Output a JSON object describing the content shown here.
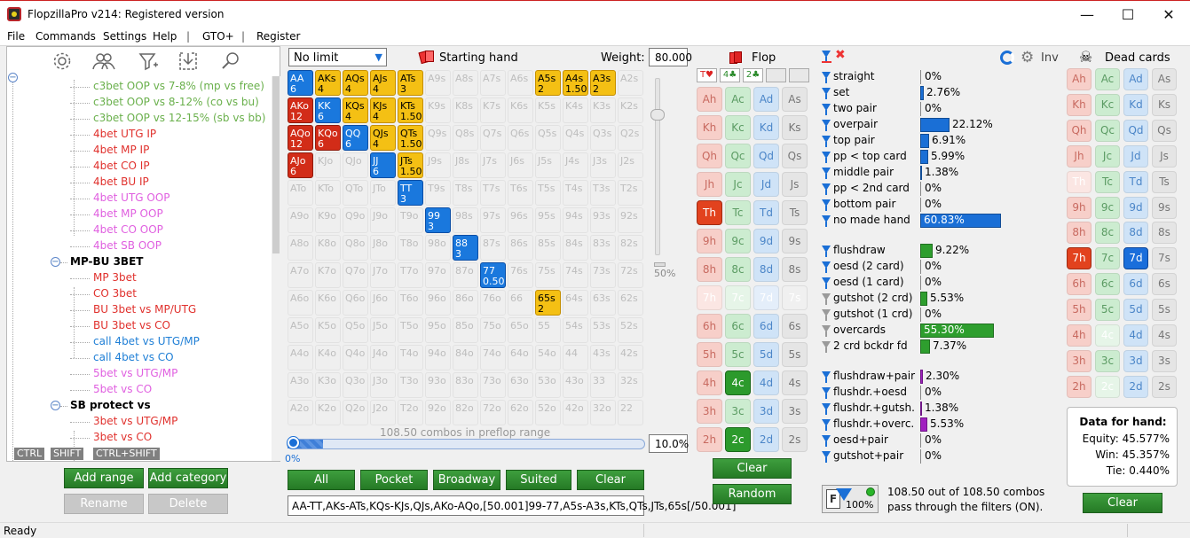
{
  "window": {
    "title": "FlopzillaPro v214: Registered version"
  },
  "menu": [
    "File",
    "Commands",
    "Settings",
    "Help",
    "|",
    "GTO+",
    "|",
    "Register"
  ],
  "tree": {
    "items": [
      {
        "text": "c3bet OOP vs 7-8% (mp vs free)",
        "color": "#6ab04c",
        "indent": 97
      },
      {
        "text": "c3bet OOP vs 8-12% (co vs bu)",
        "color": "#6ab04c",
        "indent": 97
      },
      {
        "text": "c3bet OOP vs 12-15% (sb vs bb)",
        "color": "#6ab04c",
        "indent": 97
      },
      {
        "text": "4bet UTG IP",
        "color": "#e0312d",
        "indent": 97
      },
      {
        "text": "4bet MP IP",
        "color": "#e0312d",
        "indent": 97
      },
      {
        "text": "4bet CO IP",
        "color": "#e0312d",
        "indent": 97
      },
      {
        "text": "4bet BU IP",
        "color": "#e0312d",
        "indent": 97
      },
      {
        "text": "4bet UTG OOP",
        "color": "#e060e0",
        "indent": 97
      },
      {
        "text": "4bet MP OOP",
        "color": "#e060e0",
        "indent": 97
      },
      {
        "text": "4bet CO OOP",
        "color": "#e060e0",
        "indent": 97
      },
      {
        "text": "4bet SB OOP",
        "color": "#e060e0",
        "indent": 97
      },
      {
        "text": "MP-BU 3BET",
        "color": "#000",
        "indent": 71,
        "bold": true,
        "folder": true
      },
      {
        "text": "MP 3bet",
        "color": "#e0312d",
        "indent": 97
      },
      {
        "text": "CO 3bet",
        "color": "#e0312d",
        "indent": 97
      },
      {
        "text": "BU 3bet vs MP/UTG",
        "color": "#e0312d",
        "indent": 97
      },
      {
        "text": "BU 3bet vs CO",
        "color": "#e0312d",
        "indent": 97
      },
      {
        "text": "call 4bet vs UTG/MP",
        "color": "#1f7fd6",
        "indent": 97
      },
      {
        "text": "call 4bet vs CO",
        "color": "#1f7fd6",
        "indent": 97
      },
      {
        "text": "5bet vs UTG/MP",
        "color": "#e060e0",
        "indent": 97
      },
      {
        "text": "5bet vs CO",
        "color": "#e060e0",
        "indent": 97
      },
      {
        "text": "SB protect vs",
        "color": "#000",
        "indent": 71,
        "bold": true,
        "folder": true
      },
      {
        "text": "3bet vs UTG/MP",
        "color": "#e0312d",
        "indent": 97
      },
      {
        "text": "3bet vs CO",
        "color": "#e0312d",
        "indent": 97
      }
    ],
    "kb_tags": [
      "CTRL",
      "SHIFT",
      "CTRL+SHIFT"
    ]
  },
  "buttons": {
    "add_range": "Add range",
    "add_category": "Add category",
    "rename": "Rename",
    "delete": "Delete",
    "all": "All",
    "pocket": "Pocket",
    "broadway": "Broadway",
    "suited": "Suited",
    "clear": "Clear",
    "flop_clear": "Clear",
    "flop_random": "Random",
    "dead_clear": "Clear"
  },
  "range": {
    "game_type": "No limit",
    "starting_hand_label": "Starting hand",
    "weight_label": "Weight:",
    "weight_value": "80.000",
    "slider_pct": "50%",
    "combos_text": "108.50 combos in preflop range",
    "progress_left": "0%",
    "progress_value": "10.0%",
    "progress_fraction": 0.1,
    "range_string": "AA-TT,AKs-ATs,KQs-KJs,QJs,AKo-AQo,[50.001]99-77,A5s-A3s,KTs,QTs,JTs,65s[/50.001]"
  },
  "matrix": {
    "ranks": [
      "A",
      "K",
      "Q",
      "J",
      "T",
      "9",
      "8",
      "7",
      "6",
      "5",
      "4",
      "3",
      "2"
    ],
    "cells": {
      "AA": {
        "c": "b",
        "w": "6"
      },
      "AKs": {
        "c": "y",
        "w": "4"
      },
      "AQs": {
        "c": "y",
        "w": "4"
      },
      "AJs": {
        "c": "y",
        "w": "4"
      },
      "ATs": {
        "c": "y",
        "w": "3"
      },
      "A5s": {
        "c": "y",
        "w": "2"
      },
      "A4s": {
        "c": "y",
        "w": "1.50"
      },
      "A3s": {
        "c": "y",
        "w": "2"
      },
      "AKo": {
        "c": "r",
        "w": "12"
      },
      "KK": {
        "c": "b",
        "w": "6"
      },
      "KQs": {
        "c": "y",
        "w": "4"
      },
      "KJs": {
        "c": "y",
        "w": "4"
      },
      "KTs": {
        "c": "y",
        "w": "1.50"
      },
      "AQo": {
        "c": "r",
        "w": "12"
      },
      "KQo": {
        "c": "r",
        "w": "6"
      },
      "QQ": {
        "c": "b",
        "w": "6"
      },
      "QJs": {
        "c": "y",
        "w": "4"
      },
      "QTs": {
        "c": "y",
        "w": "1.50"
      },
      "AJo": {
        "c": "r",
        "w": "6"
      },
      "JJ": {
        "c": "b",
        "w": "6"
      },
      "JTs": {
        "c": "y",
        "w": "1.50"
      },
      "TT": {
        "c": "b",
        "w": "3"
      },
      "99": {
        "c": "b",
        "w": "3"
      },
      "88": {
        "c": "b",
        "w": "3"
      },
      "77": {
        "c": "b",
        "w": "0.50"
      },
      "65s": {
        "c": "y",
        "w": "2"
      }
    }
  },
  "flop": {
    "title": "Flop",
    "slots": [
      "T♥",
      "4♣",
      "2♣",
      "",
      ""
    ],
    "ranks": [
      "A",
      "K",
      "Q",
      "J",
      "T",
      "9",
      "8",
      "7",
      "6",
      "5",
      "4",
      "3",
      "2"
    ],
    "selected": [
      "Th",
      "4c",
      "2c"
    ],
    "dead": [
      "7h",
      "7c",
      "7d",
      "7s"
    ]
  },
  "filters": {
    "inv_label": "Inv",
    "groups": [
      [
        {
          "label": "straight",
          "pct": "0%",
          "value": 0,
          "color": "#1a6fd6"
        },
        {
          "label": "set",
          "pct": "2.76%",
          "value": 2.76,
          "color": "#1a6fd6"
        },
        {
          "label": "two pair",
          "pct": "0%",
          "value": 0,
          "color": "#1a6fd6"
        },
        {
          "label": "overpair",
          "pct": "22.12%",
          "value": 22.12,
          "color": "#1a6fd6"
        },
        {
          "label": "top pair",
          "pct": "6.91%",
          "value": 6.91,
          "color": "#1a6fd6"
        },
        {
          "label": "pp < top card",
          "pct": "5.99%",
          "value": 5.99,
          "color": "#1a6fd6"
        },
        {
          "label": "middle pair",
          "pct": "1.38%",
          "value": 1.38,
          "color": "#1a6fd6"
        },
        {
          "label": "pp < 2nd card",
          "pct": "0%",
          "value": 0,
          "color": "#1a6fd6"
        },
        {
          "label": "bottom pair",
          "pct": "0%",
          "value": 0,
          "color": "#1a6fd6"
        },
        {
          "label": "no made hand",
          "pct": "60.83%",
          "value": 60.83,
          "color": "#1a6fd6"
        }
      ],
      [
        {
          "label": "flushdraw",
          "pct": "9.22%",
          "value": 9.22,
          "color": "#2e9e2e"
        },
        {
          "label": "oesd (2 card)",
          "pct": "0%",
          "value": 0,
          "color": "#2e9e2e"
        },
        {
          "label": "oesd (1 card)",
          "pct": "0%",
          "value": 0,
          "color": "#2e9e2e"
        },
        {
          "label": "gutshot (2 crd)",
          "pct": "5.53%",
          "value": 5.53,
          "color": "#2e9e2e",
          "grey": true
        },
        {
          "label": "gutshot (1 crd)",
          "pct": "0%",
          "value": 0,
          "color": "#2e9e2e",
          "grey": true
        },
        {
          "label": "overcards",
          "pct": "55.30%",
          "value": 55.3,
          "color": "#2e9e2e",
          "grey": true
        },
        {
          "label": "2 crd bckdr fd",
          "pct": "7.37%",
          "value": 7.37,
          "color": "#2e9e2e",
          "grey": true
        }
      ],
      [
        {
          "label": "flushdraw+pair",
          "pct": "2.30%",
          "value": 2.3,
          "color": "#a020c0"
        },
        {
          "label": "flushdr.+oesd",
          "pct": "0%",
          "value": 0,
          "color": "#a020c0"
        },
        {
          "label": "flushdr.+gutsh.",
          "pct": "1.38%",
          "value": 1.38,
          "color": "#a020c0"
        },
        {
          "label": "flushdr.+overc.",
          "pct": "5.53%",
          "value": 5.53,
          "color": "#a020c0"
        },
        {
          "label": "oesd+pair",
          "pct": "0%",
          "value": 0,
          "color": "#a020c0"
        },
        {
          "label": "gutshot+pair",
          "pct": "0%",
          "value": 0,
          "color": "#a020c0"
        }
      ]
    ],
    "pass_badge": "100%",
    "pass_text_1": "108.50 out of 108.50 combos",
    "pass_text_2": "pass through the filters (ON)."
  },
  "dead": {
    "title": "Dead cards",
    "hand_title": "Data for hand:",
    "equity": "Equity: 45.577%",
    "win": "Win: 45.357%",
    "tie": "Tie: 0.440%"
  },
  "status": "Ready"
}
